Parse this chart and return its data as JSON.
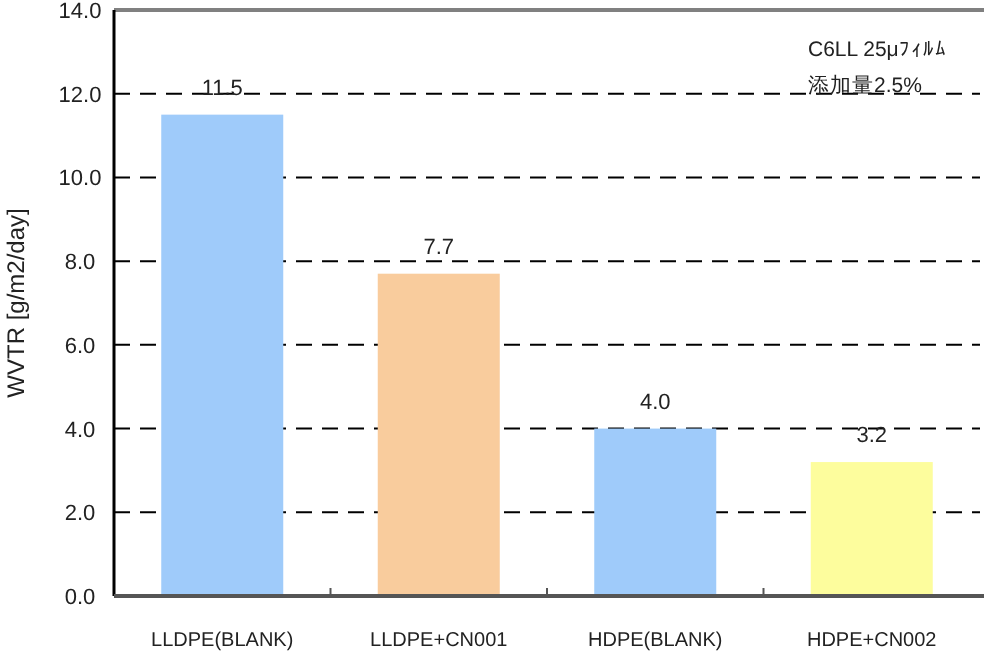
{
  "chart_data": {
    "type": "bar",
    "ylabel": "WVTR [g/m2/day]",
    "categories": [
      "LLDPE(BLANK)",
      "LLDPE+CN001",
      "HDPE(BLANK)",
      "HDPE+CN002"
    ],
    "values": [
      11.5,
      7.7,
      4.0,
      3.2
    ],
    "colors": [
      "#9fcbfa",
      "#f9cc9d",
      "#9fcbfa",
      "#fdfd9d"
    ],
    "value_labels": [
      "11.5",
      "7.7",
      "4.0",
      "3.2"
    ],
    "ylim": [
      0,
      14
    ],
    "yticks": [
      {
        "value": 0,
        "label": "0.0"
      },
      {
        "value": 2,
        "label": "2.0"
      },
      {
        "value": 4,
        "label": "4.0"
      },
      {
        "value": 6,
        "label": "6.0"
      },
      {
        "value": 8,
        "label": "8.0"
      },
      {
        "value": 10,
        "label": "10.0"
      },
      {
        "value": 12,
        "label": "12.0"
      },
      {
        "value": 14,
        "label": "14.0"
      }
    ],
    "grid": "y",
    "annotations": [
      "C6LL 25μﾌｨﾙﾑ",
      "添加量2.5%"
    ]
  }
}
